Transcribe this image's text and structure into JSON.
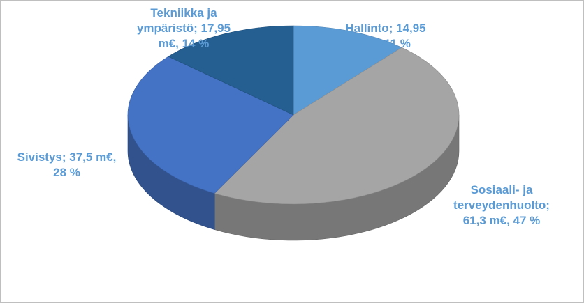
{
  "chart_data": {
    "type": "pie",
    "style": "3d",
    "categories": [
      "Hallinto",
      "Sosiaali- ja terveydenhuolto",
      "Sivistys",
      "Tekniikka ja ympäristö"
    ],
    "values_meur": [
      14.95,
      61.3,
      37.5,
      17.95
    ],
    "percents": [
      11,
      47,
      28,
      14
    ],
    "colors": [
      "#5b9bd5",
      "#a5a5a5",
      "#4472c4",
      "#255e91"
    ],
    "label_color": "#5b9bd5",
    "labels": [
      "Hallinto; 14,95\nm€, 11 %",
      "Sosiaali- ja\nterveydenhuolto;\n61,3 m€, 47 %",
      "Sivistys; 37,5 m€,\n28 %",
      "Tekniikka ja\nympäristö; 17,95\nm€, 14 %"
    ]
  }
}
